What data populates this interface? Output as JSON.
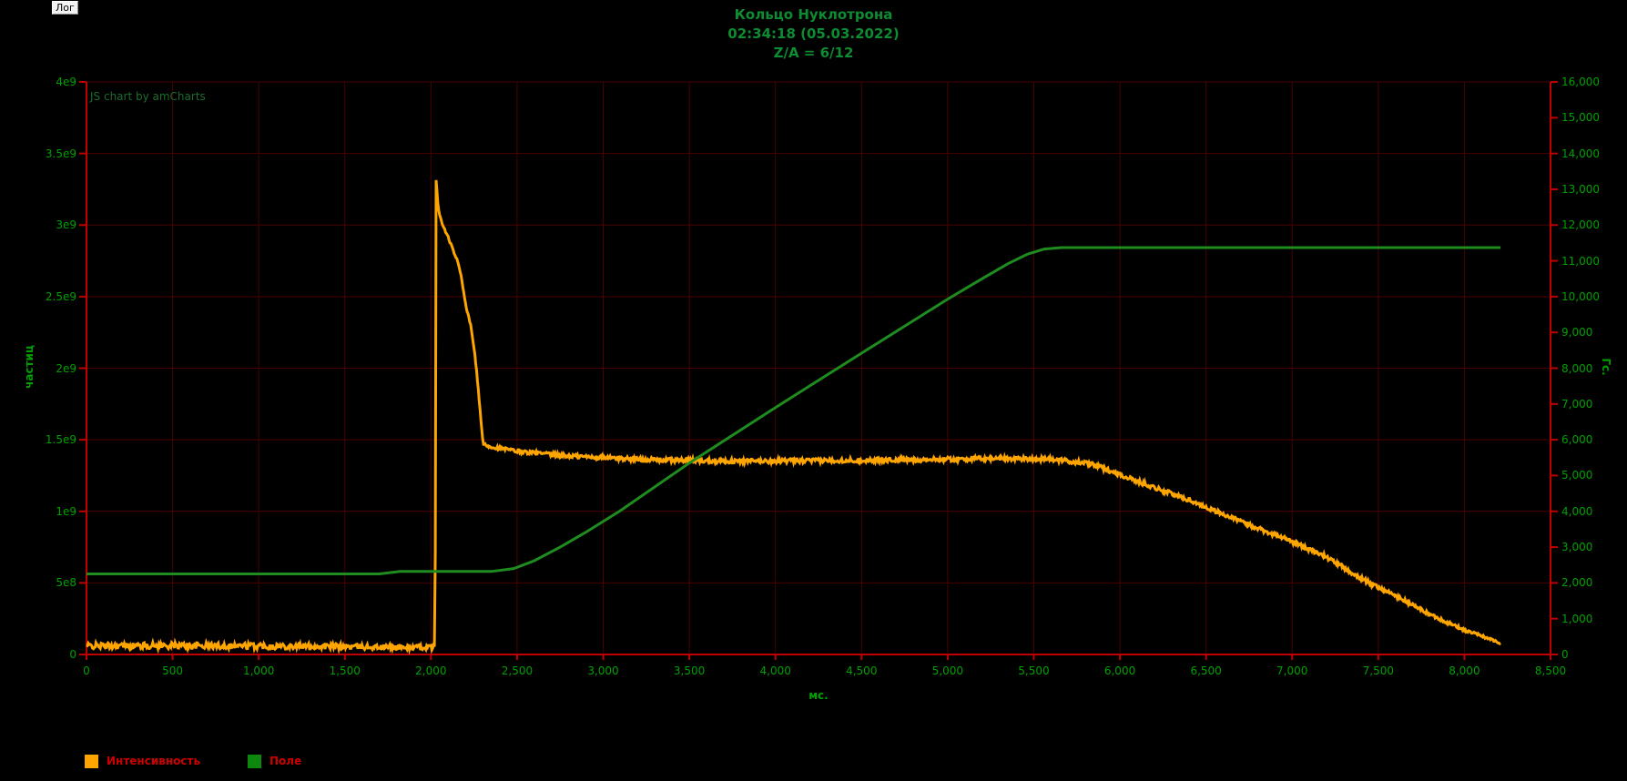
{
  "log_button": {
    "label": "Лог"
  },
  "title": {
    "line1": "Кольцо Нуклотрона",
    "line2": "02:34:18 (05.03.2022)",
    "line3": "Z/A = 6/12"
  },
  "watermark": "JS chart by amCharts",
  "colors": {
    "background": "#000000",
    "axis_line": "#c00000",
    "grid_line": "#4a0000",
    "tick_text": "#00a000",
    "title_text": "#0e8c32",
    "legend_text": "#cc0000",
    "intensity_line": "#ffa500",
    "field_line": "#1e8c1e",
    "field_swatch": "#0e870e"
  },
  "chart_data": {
    "type": "line",
    "title": "Кольцо Нуклотрона",
    "subtitle": "02:34:18 (05.03.2022)",
    "subtitle2": "Z/A = 6/12",
    "grid": "on",
    "legend_position": "bottom-left",
    "x_axis": {
      "label": "мс.",
      "min": 0,
      "max": 8500,
      "tick_step": 500,
      "tick_values": [
        0,
        500,
        1000,
        1500,
        2000,
        2500,
        3000,
        3500,
        4000,
        4500,
        5000,
        5500,
        6000,
        6500,
        7000,
        7500,
        8000,
        8500
      ],
      "tick_labels": [
        "0",
        "500",
        "1,000",
        "1,500",
        "2,000",
        "2,500",
        "3,000",
        "3,500",
        "4,000",
        "4,500",
        "5,000",
        "5,500",
        "6,000",
        "6,500",
        "7,000",
        "7,500",
        "8,000",
        "8,500"
      ]
    },
    "y_axis_left": {
      "label": "частиц",
      "min": 0,
      "max": 4000000000.0,
      "tick_step": 500000000.0,
      "tick_values": [
        0,
        500000000.0,
        1000000000.0,
        1500000000.0,
        2000000000.0,
        2500000000.0,
        3000000000.0,
        3500000000.0,
        4000000000.0
      ],
      "tick_labels": [
        "0",
        "5e8",
        "1e9",
        "1.5e9",
        "2e9",
        "2.5e9",
        "3e9",
        "3.5e9",
        "4e9"
      ]
    },
    "y_axis_right": {
      "label": "Гс.",
      "min": 0,
      "max": 16000,
      "tick_step": 1000,
      "tick_values": [
        0,
        1000,
        2000,
        3000,
        4000,
        5000,
        6000,
        7000,
        8000,
        9000,
        10000,
        11000,
        12000,
        13000,
        14000,
        15000,
        16000
      ],
      "tick_labels": [
        "0",
        "1,000",
        "2,000",
        "3,000",
        "4,000",
        "5,000",
        "6,000",
        "7,000",
        "8,000",
        "9,000",
        "10,000",
        "11,000",
        "12,000",
        "13,000",
        "14,000",
        "15,000",
        "16,000"
      ]
    },
    "series": [
      {
        "name": "Интенсивность",
        "axis": "left",
        "color": "#ffa500",
        "units": "particles, values in 1e9",
        "value_scale": 1000000000.0,
        "noise": true,
        "points_t_v_noise": [
          [
            0,
            0.06,
            0.022
          ],
          [
            500,
            0.062,
            0.022
          ],
          [
            1000,
            0.06,
            0.022
          ],
          [
            1500,
            0.055,
            0.02
          ],
          [
            1800,
            0.05,
            0.018
          ],
          [
            2015,
            0.05,
            0.018
          ],
          [
            2024,
            0.05,
            0.0
          ],
          [
            2029,
            3.33,
            0.0
          ],
          [
            2042,
            3.12,
            0.0
          ],
          [
            2055,
            3.05,
            0.008
          ],
          [
            2070,
            2.99,
            0.008
          ],
          [
            2095,
            2.93,
            0.008
          ],
          [
            2120,
            2.85,
            0.008
          ],
          [
            2150,
            2.76,
            0.008
          ],
          [
            2175,
            2.65,
            0.008
          ],
          [
            2200,
            2.45,
            0.008
          ],
          [
            2230,
            2.3,
            0.008
          ],
          [
            2255,
            2.1,
            0.008
          ],
          [
            2275,
            1.85,
            0.008
          ],
          [
            2292,
            1.6,
            0.008
          ],
          [
            2303,
            1.47,
            0.01
          ],
          [
            2350,
            1.45,
            0.012
          ],
          [
            2500,
            1.42,
            0.013
          ],
          [
            2750,
            1.39,
            0.015
          ],
          [
            3000,
            1.375,
            0.015
          ],
          [
            3300,
            1.36,
            0.015
          ],
          [
            3800,
            1.35,
            0.015
          ],
          [
            4300,
            1.355,
            0.015
          ],
          [
            4800,
            1.36,
            0.015
          ],
          [
            5300,
            1.37,
            0.015
          ],
          [
            5600,
            1.365,
            0.015
          ],
          [
            5840,
            1.33,
            0.015
          ],
          [
            6100,
            1.21,
            0.015
          ],
          [
            6400,
            1.08,
            0.015
          ],
          [
            6700,
            0.93,
            0.015
          ],
          [
            7000,
            0.79,
            0.015
          ],
          [
            7200,
            0.68,
            0.015
          ],
          [
            7400,
            0.53,
            0.015
          ],
          [
            7600,
            0.41,
            0.013
          ],
          [
            7800,
            0.28,
            0.012
          ],
          [
            8000,
            0.17,
            0.01
          ],
          [
            8100,
            0.13,
            0.009
          ],
          [
            8210,
            0.08,
            0.008
          ]
        ]
      },
      {
        "name": "Поле",
        "axis": "right",
        "color": "#1e8c1e",
        "units": "Gauss",
        "value_scale": 1,
        "noise": false,
        "points_t_v": [
          [
            0,
            2250
          ],
          [
            1700,
            2250
          ],
          [
            1820,
            2320
          ],
          [
            2350,
            2320
          ],
          [
            2480,
            2400
          ],
          [
            2600,
            2620
          ],
          [
            2750,
            3000
          ],
          [
            2900,
            3420
          ],
          [
            3100,
            4020
          ],
          [
            3500,
            5350
          ],
          [
            4000,
            6900
          ],
          [
            4500,
            8420
          ],
          [
            5000,
            9930
          ],
          [
            5200,
            10500
          ],
          [
            5350,
            10920
          ],
          [
            5460,
            11180
          ],
          [
            5560,
            11330
          ],
          [
            5660,
            11370
          ],
          [
            8210,
            11370
          ]
        ]
      }
    ]
  },
  "legend": {
    "items": [
      {
        "label": "Интенсивность",
        "color": "#ffa500"
      },
      {
        "label": "Поле",
        "color": "#0e870e"
      }
    ]
  }
}
